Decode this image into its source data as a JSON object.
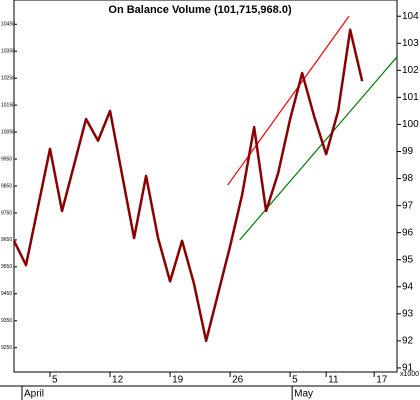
{
  "chart_data": {
    "type": "line",
    "title": "On Balance Volume (101,715,968.0)",
    "x": [
      0,
      1,
      3,
      4,
      6,
      7,
      8,
      10,
      11,
      12,
      13,
      14,
      15,
      16,
      18,
      19,
      20,
      21,
      22,
      23,
      24,
      25,
      26,
      27,
      28,
      29
    ],
    "series": [
      {
        "name": "On Balance Volume",
        "color": "#8b0000",
        "values": [
          95.7,
          94.8,
          99.1,
          96.8,
          100.2,
          99.4,
          100.5,
          95.8,
          98.1,
          95.8,
          94.2,
          95.7,
          94.1,
          92.0,
          95.5,
          97.4,
          99.9,
          96.8,
          98.2,
          100.2,
          101.9,
          100.3,
          98.9,
          100.5,
          103.5,
          101.6
        ]
      }
    ],
    "lines": [
      {
        "color": "#ff0000",
        "x": [
          17.8,
          27.9
        ],
        "values": [
          97.76,
          104.0
        ]
      },
      {
        "color": "#008000",
        "x": [
          18.8,
          31.9
        ],
        "values": [
          95.73,
          102.5
        ]
      }
    ],
    "xlim": [
      0,
      31.9
    ],
    "xticks": [
      {
        "value": 3,
        "label": "5"
      },
      {
        "value": 8,
        "label": "12"
      },
      {
        "value": 13,
        "label": "19"
      },
      {
        "value": 18,
        "label": "26"
      },
      {
        "value": 23,
        "label": "5"
      },
      {
        "value": 26,
        "label": "11"
      },
      {
        "value": 30,
        "label": "17"
      }
    ],
    "months": [
      {
        "value": 0,
        "label": "April"
      },
      {
        "value": 22.5,
        "label": "May"
      }
    ],
    "ylim": [
      90.85,
      104.6
    ],
    "yticks": [
      91,
      92,
      93,
      94,
      95,
      96,
      97,
      98,
      99,
      100,
      101,
      102,
      103,
      104
    ],
    "y_unit_label": "x1000",
    "y2lim": [
      9160,
      10540
    ],
    "y2ticks": [
      9250,
      9350,
      9450,
      9550,
      9650,
      9750,
      9850,
      9950,
      10050,
      10150,
      10250,
      10350,
      10450
    ]
  }
}
